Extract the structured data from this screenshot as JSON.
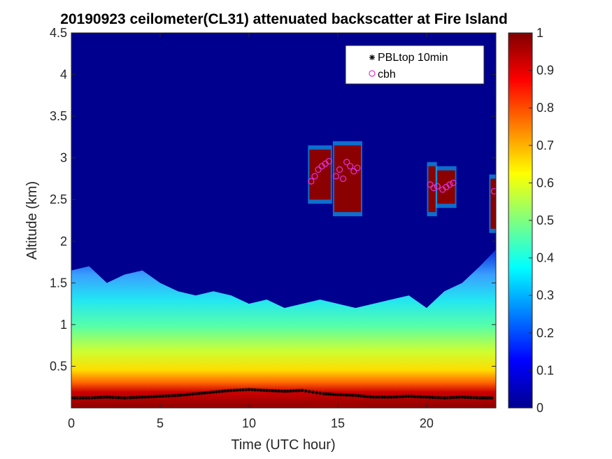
{
  "chart_data": {
    "type": "heatmap",
    "title": "20190923 ceilometer(CL31) attenuated backscatter at Fire Island",
    "xlabel": "Time (UTC hour)",
    "ylabel": "Altitude (km)",
    "xlim": [
      0,
      23.9
    ],
    "ylim": [
      0,
      4.5
    ],
    "x_ticks": [
      0,
      5,
      10,
      15,
      20
    ],
    "x_tick_labels": [
      "0",
      "5",
      "10",
      "15",
      "20"
    ],
    "y_ticks": [
      0.5,
      1,
      1.5,
      2,
      2.5,
      3,
      3.5,
      4,
      4.5
    ],
    "y_tick_labels": [
      "0.5",
      "1",
      "1.5",
      "2",
      "2.5",
      "3",
      "3.5",
      "4",
      "4.5"
    ],
    "colorbar": {
      "colormap": "jet",
      "range": [
        0,
        1
      ],
      "ticks": [
        0,
        0.1,
        0.2,
        0.3,
        0.4,
        0.5,
        0.6,
        0.7,
        0.8,
        0.9,
        1
      ],
      "tick_labels": [
        "0",
        "0.1",
        "0.2",
        "0.3",
        "0.4",
        "0.5",
        "0.6",
        "0.7",
        "0.8",
        "0.9",
        "1"
      ]
    },
    "aerosol_layer_top_km": [
      [
        0,
        1.65
      ],
      [
        1,
        1.7
      ],
      [
        2,
        1.5
      ],
      [
        3,
        1.6
      ],
      [
        4,
        1.65
      ],
      [
        5,
        1.5
      ],
      [
        6,
        1.4
      ],
      [
        7,
        1.35
      ],
      [
        8,
        1.4
      ],
      [
        9,
        1.35
      ],
      [
        10,
        1.25
      ],
      [
        11,
        1.3
      ],
      [
        12,
        1.2
      ],
      [
        13,
        1.25
      ],
      [
        14,
        1.3
      ],
      [
        15,
        1.25
      ],
      [
        16,
        1.2
      ],
      [
        17,
        1.25
      ],
      [
        18,
        1.3
      ],
      [
        19,
        1.35
      ],
      [
        20,
        1.2
      ],
      [
        21,
        1.4
      ],
      [
        22,
        1.5
      ],
      [
        23,
        1.7
      ],
      [
        23.9,
        1.9
      ]
    ],
    "cloud_blocks": [
      {
        "t0": 13.4,
        "t1": 14.6,
        "bottom_km": 2.5,
        "top_km": 3.1
      },
      {
        "t0": 14.8,
        "t1": 16.3,
        "bottom_km": 2.35,
        "top_km": 3.15
      },
      {
        "t0": 20.1,
        "t1": 20.5,
        "bottom_km": 2.35,
        "top_km": 2.9
      },
      {
        "t0": 20.6,
        "t1": 21.6,
        "bottom_km": 2.45,
        "top_km": 2.85
      },
      {
        "t0": 23.6,
        "t1": 23.9,
        "bottom_km": 2.15,
        "top_km": 2.75
      }
    ],
    "series": [
      {
        "name": "PBLtop 10min",
        "marker": "asterisk",
        "color": "#000000",
        "x": [
          0,
          1,
          2,
          3,
          4,
          5,
          6,
          7,
          8,
          9,
          10,
          11,
          12,
          13,
          14.2,
          15,
          16,
          17,
          18,
          19,
          20,
          21,
          22,
          23,
          23.8
        ],
        "y": [
          0.12,
          0.12,
          0.13,
          0.12,
          0.13,
          0.14,
          0.15,
          0.17,
          0.19,
          0.21,
          0.22,
          0.21,
          0.2,
          0.21,
          0.17,
          0.16,
          0.15,
          0.13,
          0.13,
          0.14,
          0.13,
          0.12,
          0.13,
          0.12,
          0.12
        ]
      },
      {
        "name": "cbh",
        "marker": "circle",
        "color": "#e033e0",
        "x": [
          13.5,
          13.7,
          13.9,
          14.1,
          14.3,
          14.5,
          14.9,
          15.1,
          15.3,
          15.5,
          15.7,
          15.9,
          16.1,
          20.2,
          20.4,
          20.6,
          20.9,
          21.1,
          21.3,
          21.5,
          23.8
        ],
        "y": [
          2.72,
          2.78,
          2.86,
          2.9,
          2.93,
          2.96,
          2.78,
          2.86,
          2.75,
          2.95,
          2.9,
          2.84,
          2.88,
          2.68,
          2.64,
          2.66,
          2.62,
          2.65,
          2.68,
          2.7,
          2.6
        ]
      }
    ],
    "legend": {
      "position": "top-right",
      "entries": [
        "PBLtop 10min",
        "cbh"
      ]
    }
  }
}
